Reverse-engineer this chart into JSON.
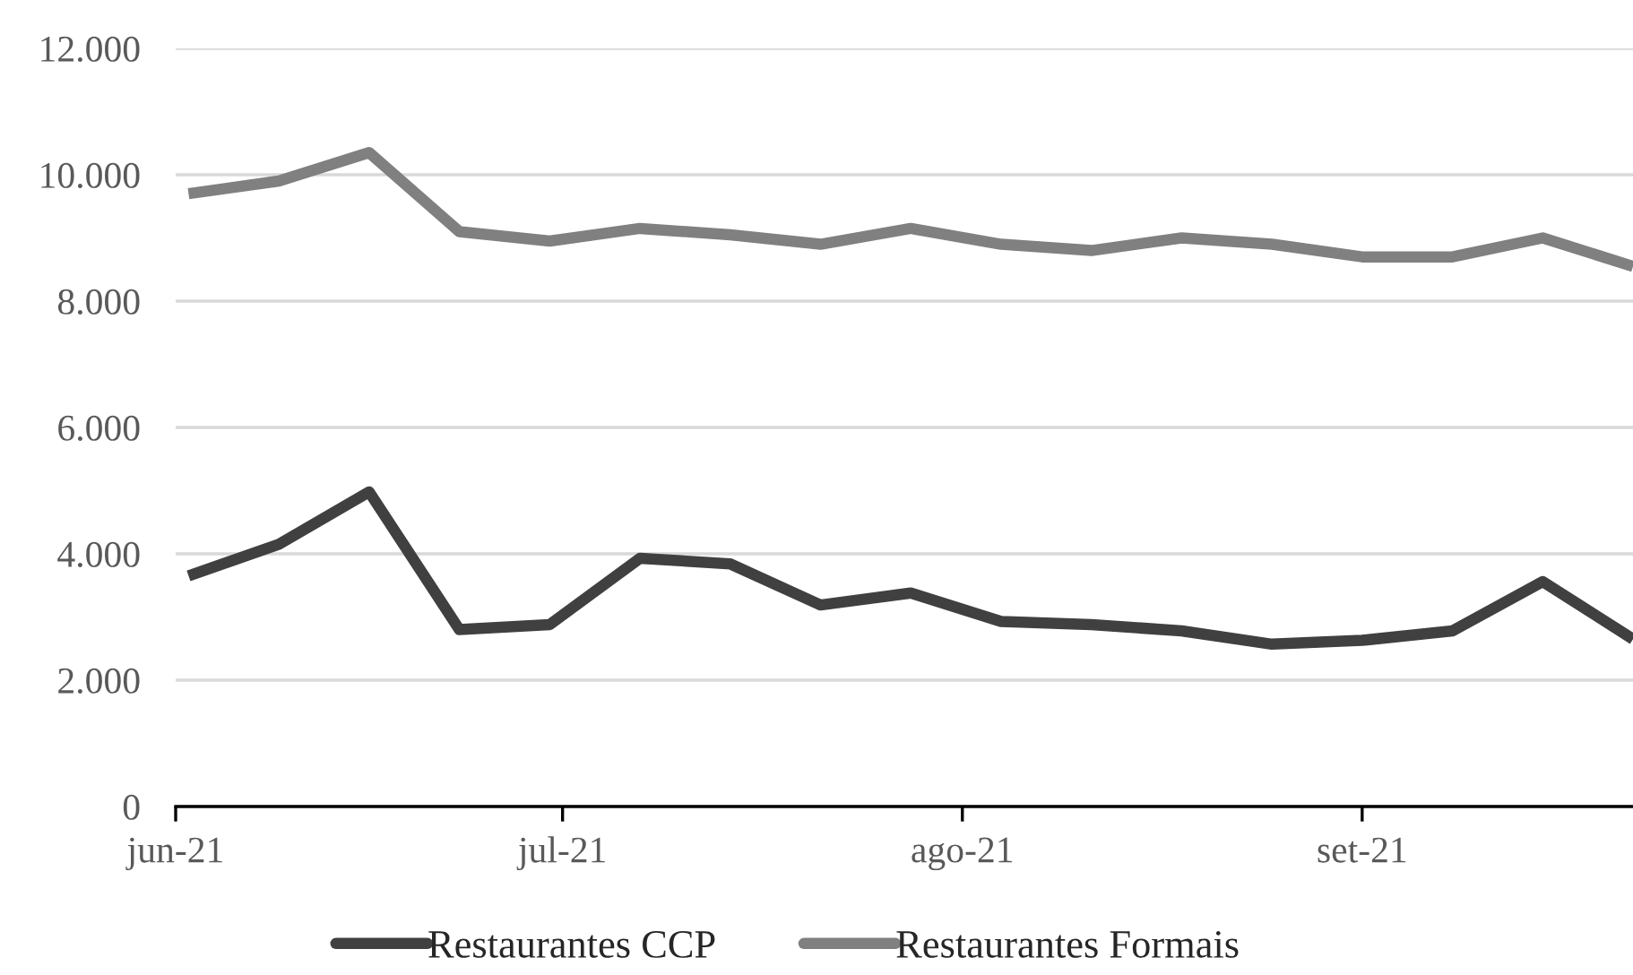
{
  "chart_data": {
    "type": "line",
    "x": [
      "2021-06-02",
      "2021-06-09",
      "2021-06-16",
      "2021-06-23",
      "2021-06-30",
      "2021-07-07",
      "2021-07-14",
      "2021-07-21",
      "2021-07-28",
      "2021-08-04",
      "2021-08-11",
      "2021-08-18",
      "2021-08-25",
      "2021-09-01",
      "2021-09-08",
      "2021-09-15",
      "2021-09-22"
    ],
    "series": [
      {
        "name": "Restaurantes CCP",
        "color": "#404040",
        "values": [
          3650,
          4150,
          4980,
          2800,
          2880,
          3930,
          3840,
          3190,
          3380,
          2930,
          2880,
          2780,
          2570,
          2630,
          2780,
          3560,
          2650
        ]
      },
      {
        "name": "Restaurantes Formais",
        "color": "#808080",
        "values": [
          9700,
          9900,
          10350,
          9100,
          8950,
          9150,
          9050,
          8900,
          9150,
          8900,
          8800,
          9000,
          8900,
          8700,
          8700,
          9000,
          8550
        ]
      }
    ],
    "xlim": [
      "2021-06-01",
      "2021-09-22"
    ],
    "xticks": [
      {
        "value": "2021-06-01",
        "label": "jun-21"
      },
      {
        "value": "2021-07-01",
        "label": "jul-21"
      },
      {
        "value": "2021-08-01",
        "label": "ago-21"
      },
      {
        "value": "2021-09-01",
        "label": "set-21"
      }
    ],
    "ylim": [
      0,
      12000
    ],
    "yticks": [
      {
        "value": 0,
        "label": "0"
      },
      {
        "value": 2000,
        "label": "2.000"
      },
      {
        "value": 4000,
        "label": "4.000"
      },
      {
        "value": 6000,
        "label": "6.000"
      },
      {
        "value": 8000,
        "label": "8.000"
      },
      {
        "value": 10000,
        "label": "10.000"
      },
      {
        "value": 12000,
        "label": "12.000"
      }
    ],
    "grid": "y",
    "legend": "bottom",
    "marker": "none",
    "line_style": "solid"
  }
}
